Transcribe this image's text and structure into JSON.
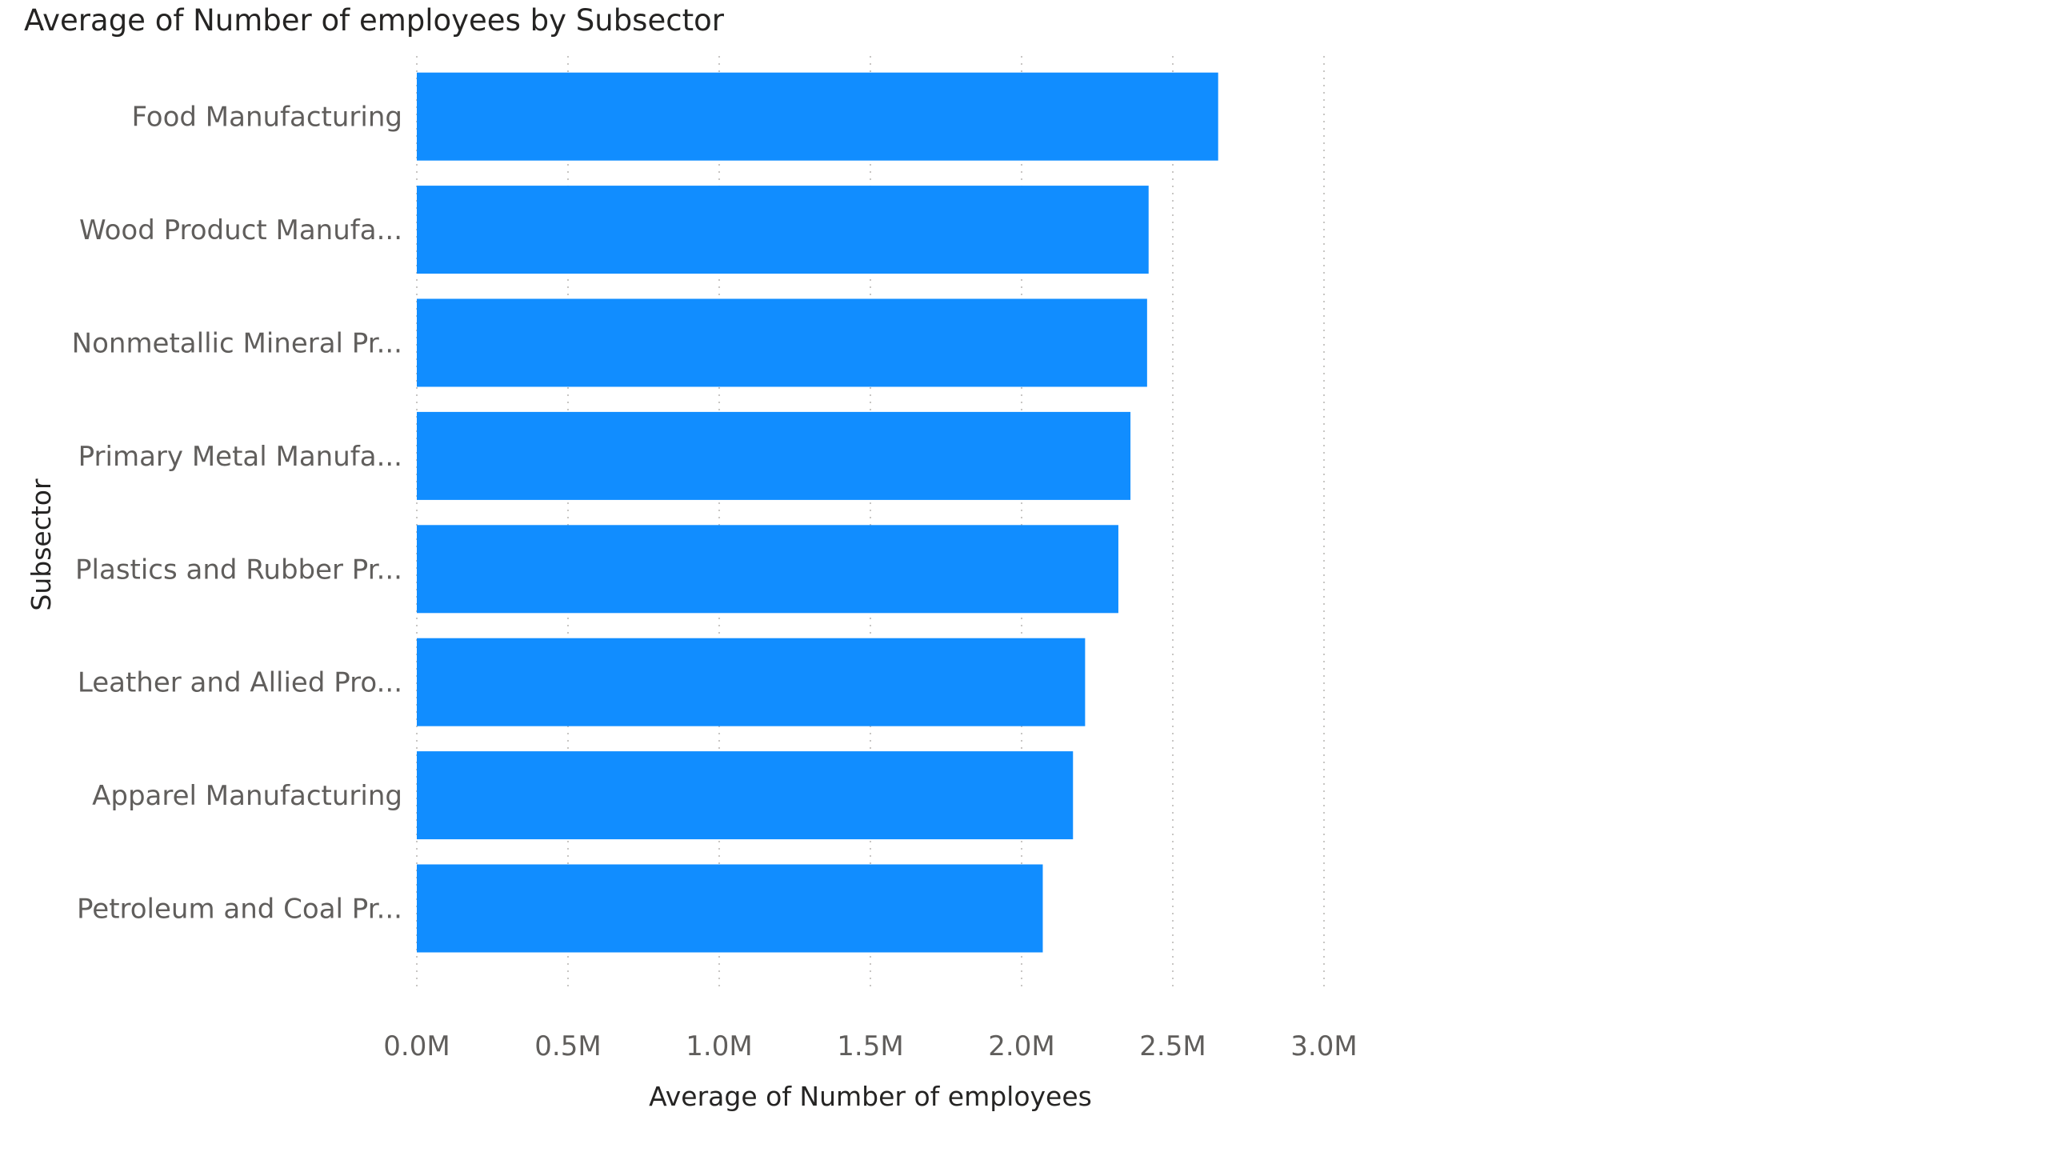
{
  "chart_data": {
    "type": "bar",
    "orientation": "horizontal",
    "title": "Average of Number of employees by Subsector",
    "xlabel": "Average of Number of employees",
    "ylabel": "Subsector",
    "categories": [
      "Food Manufacturing",
      "Wood Product Manufa...",
      "Nonmetallic Mineral Pr...",
      "Primary Metal Manufa...",
      "Plastics and Rubber Pr...",
      "Leather and Allied Pro...",
      "Apparel Manufacturing",
      "Petroleum and Coal Pr..."
    ],
    "values": [
      2650000,
      2420000,
      2415000,
      2360000,
      2320000,
      2210000,
      2170000,
      2070000
    ],
    "xlim": [
      0,
      3000000
    ],
    "x_ticks": [
      0,
      500000,
      1000000,
      1500000,
      2000000,
      2500000,
      3000000
    ],
    "x_tick_labels": [
      "0.0M",
      "0.5M",
      "1.0M",
      "1.5M",
      "2.0M",
      "2.5M",
      "3.0M"
    ],
    "grid": true,
    "bar_color": "#118dff",
    "grid_color": "#c8c6c4"
  }
}
